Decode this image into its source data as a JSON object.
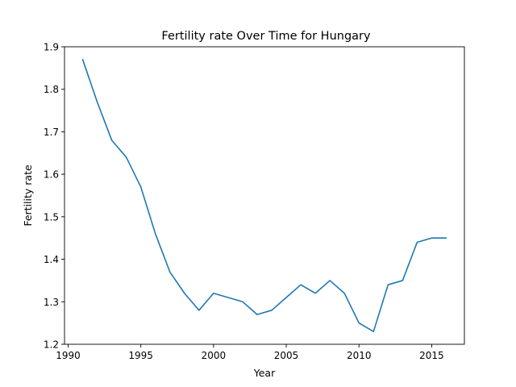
{
  "chart_data": {
    "type": "line",
    "title": "Fertility rate Over Time for Hungary",
    "xlabel": "Year",
    "ylabel": "Fertility rate",
    "xlim": [
      1989.75,
      2017.25
    ],
    "ylim": [
      1.2,
      1.9
    ],
    "xticks": [
      1990,
      1995,
      2000,
      2005,
      2010,
      2015
    ],
    "xtick_labels": [
      "1990",
      "1995",
      "2000",
      "2005",
      "2010",
      "2015"
    ],
    "yticks": [
      1.2,
      1.3,
      1.4,
      1.5,
      1.6,
      1.7,
      1.8,
      1.9
    ],
    "ytick_labels": [
      "1.2",
      "1.3",
      "1.4",
      "1.5",
      "1.6",
      "1.7",
      "1.8",
      "1.9"
    ],
    "grid": false,
    "series": [
      {
        "color": "#1f77b4",
        "x": [
          1991,
          1992,
          1993,
          1994,
          1995,
          1996,
          1997,
          1998,
          1999,
          2000,
          2001,
          2002,
          2003,
          2004,
          2005,
          2006,
          2007,
          2008,
          2009,
          2010,
          2011,
          2012,
          2013,
          2014,
          2015,
          2016
        ],
        "y": [
          1.87,
          1.77,
          1.68,
          1.64,
          1.57,
          1.46,
          1.37,
          1.32,
          1.28,
          1.32,
          1.31,
          1.3,
          1.27,
          1.28,
          1.31,
          1.34,
          1.32,
          1.35,
          1.32,
          1.25,
          1.23,
          1.34,
          1.35,
          1.44,
          1.45,
          1.45
        ]
      }
    ]
  }
}
